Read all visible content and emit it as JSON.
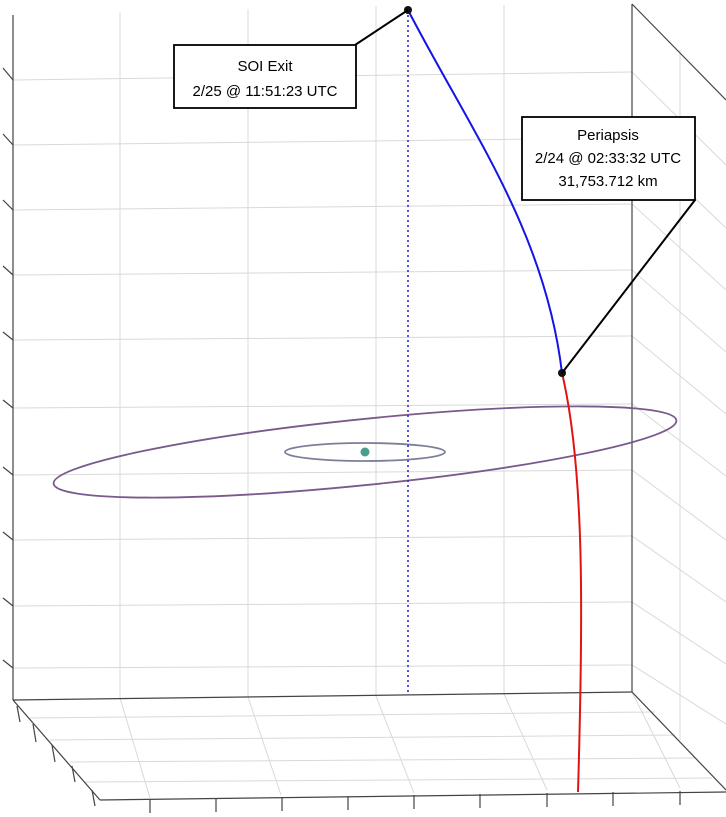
{
  "chart_data": {
    "type": "3d-trajectory",
    "title": "",
    "xlabel": "",
    "ylabel": "",
    "zlabel": "",
    "grid": true,
    "series": [
      {
        "color": "#1414e6",
        "style": "solid"
      },
      {
        "color": "#e01414",
        "style": "solid"
      },
      {
        "color": "#7a5a8c",
        "style": "solid"
      },
      {
        "color": "#7b7f9a",
        "style": "solid"
      },
      {
        "color": "#2a2ad6",
        "style": "dotted"
      }
    ],
    "central_body": {
      "color": "#4a9e8e"
    },
    "annotations": [
      {
        "label": "SOI Exit",
        "lines": [
          "SOI Exit",
          "2/25 @ 11:51:23 UTC"
        ]
      },
      {
        "label": "Periapsis",
        "lines": [
          "Periapsis",
          "2/24 @ 02:33:32 UTC",
          "31,753.712 km"
        ]
      }
    ]
  }
}
